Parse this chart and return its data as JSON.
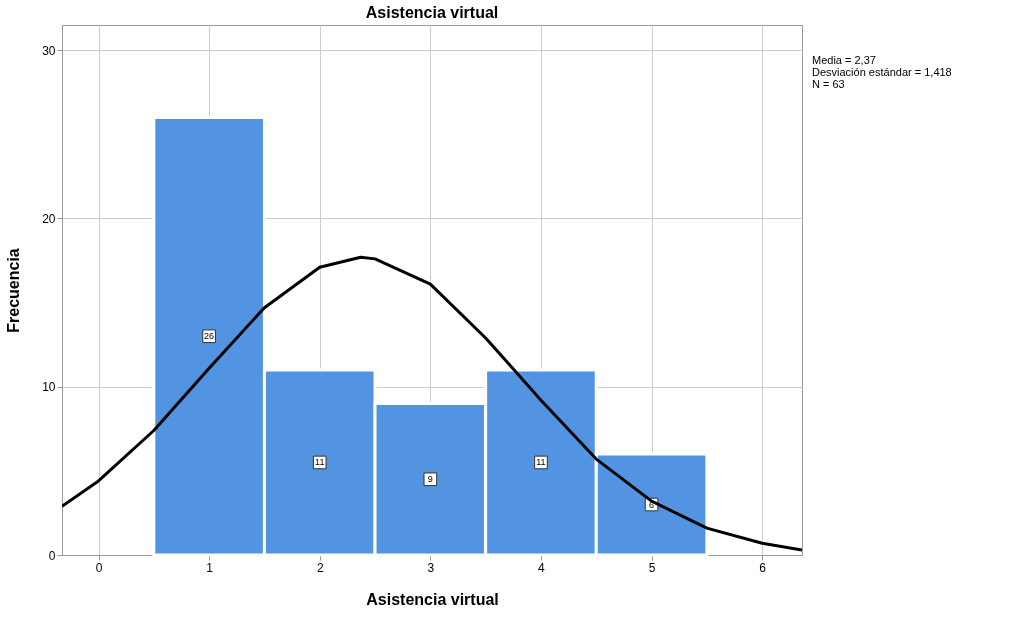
{
  "chart_data": {
    "type": "histogram",
    "title": "Asistencia virtual",
    "xlabel": "Asistencia virtual",
    "ylabel": "Frecuencia",
    "bins": [
      0.5,
      1.5,
      2.5,
      3.5,
      4.5,
      5.5
    ],
    "values": [
      26,
      11,
      9,
      11,
      6
    ],
    "color": "#5294e2",
    "value_labels": [
      "26",
      "11",
      "9",
      "11",
      "6"
    ],
    "series": [
      {
        "type": "line",
        "color": "#000000",
        "x": [
          -0.33,
          0,
          0.5,
          1,
          1.5,
          2,
          2.37,
          2.5,
          3,
          3.5,
          4,
          4.5,
          5,
          5.5,
          6,
          6.36
        ],
        "values": [
          2.9,
          4.4,
          7.4,
          11.1,
          14.7,
          17.1,
          17.7,
          17.6,
          16.1,
          12.9,
          9.2,
          5.7,
          3.2,
          1.6,
          0.7,
          0.3
        ]
      }
    ],
    "xlim": [
      -0.33,
      6.36
    ],
    "xticks": [
      0,
      1,
      2,
      3,
      4,
      5,
      6
    ],
    "ylim": [
      0,
      31.5
    ],
    "yticks": [
      0,
      10,
      20,
      30
    ],
    "grid": true,
    "annotations": [
      "Media = 2,37",
      "Desviación estándar = 1,418",
      "N = 63"
    ]
  }
}
